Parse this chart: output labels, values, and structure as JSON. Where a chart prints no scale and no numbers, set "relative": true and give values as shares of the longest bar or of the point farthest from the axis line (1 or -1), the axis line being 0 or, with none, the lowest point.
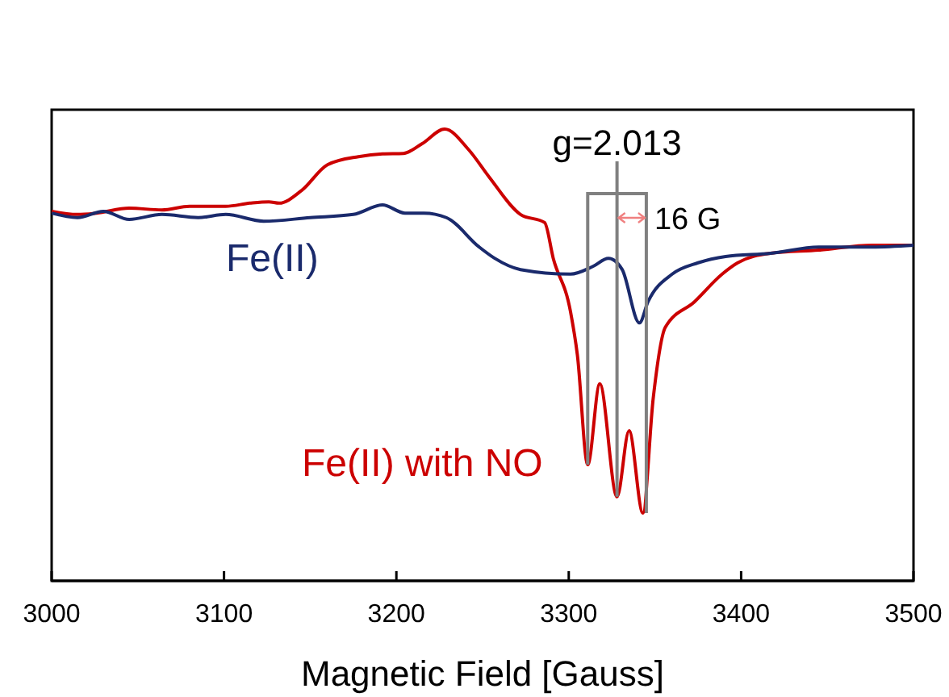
{
  "chart_data": {
    "type": "line",
    "relative": true,
    "xlabel": "Magnetic Field [Gauss]",
    "xlim": [
      3000,
      3500
    ],
    "xticks": [
      3000,
      3100,
      3200,
      3300,
      3400,
      3500
    ],
    "grid": false,
    "marker": "none",
    "line_style": "solid",
    "series": [
      {
        "name": "Fe(II) with NO",
        "color": "#cc0000",
        "x": [
          3000,
          3015,
          3026,
          3045,
          3064,
          3080,
          3101,
          3115,
          3126,
          3132,
          3145,
          3160,
          3178,
          3192,
          3204,
          3215,
          3228,
          3242,
          3254,
          3272,
          3286,
          3291,
          3301,
          3305,
          3311,
          3318,
          3328,
          3335,
          3343,
          3349,
          3356,
          3373,
          3389,
          3398,
          3417,
          3445,
          3476,
          3500
        ],
        "values": [
          0.818,
          0.811,
          0.814,
          0.825,
          0.821,
          0.829,
          0.829,
          0.836,
          0.839,
          0.836,
          0.864,
          0.921,
          0.939,
          0.945,
          0.946,
          0.968,
          1,
          0.954,
          0.893,
          0.811,
          0.793,
          0.714,
          0.596,
          0.5,
          0.257,
          0.436,
          0.186,
          0.332,
          0.15,
          0.404,
          0.561,
          0.618,
          0.679,
          0.704,
          0.725,
          0.732,
          0.743,
          0.743
        ]
      },
      {
        "name": "Fe(II)",
        "color": "#1a2a6c",
        "x": [
          3000,
          3015,
          3030,
          3045,
          3064,
          3085,
          3101,
          3123,
          3150,
          3175,
          3192,
          3205,
          3216,
          3229,
          3248,
          3257,
          3272,
          3301,
          3314,
          3323,
          3331,
          3341,
          3346,
          3360,
          3375,
          3391,
          3417,
          3445,
          3476,
          3500
        ],
        "values": [
          0.814,
          0.804,
          0.818,
          0.8,
          0.811,
          0.804,
          0.811,
          0.796,
          0.804,
          0.811,
          0.832,
          0.814,
          0.814,
          0.804,
          0.739,
          0.714,
          0.689,
          0.679,
          0.696,
          0.714,
          0.689,
          0.571,
          0.618,
          0.679,
          0.704,
          0.718,
          0.725,
          0.739,
          0.739,
          0.743
        ]
      }
    ],
    "annotations": [
      {
        "text": "g=2.013",
        "x": 3328,
        "y": 0.186
      },
      "16 G"
    ]
  }
}
